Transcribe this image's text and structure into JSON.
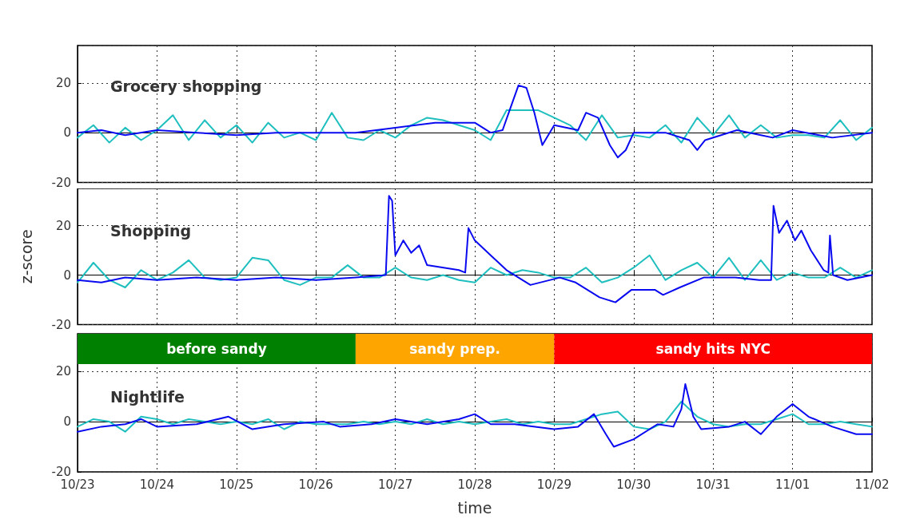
{
  "chart_data": [
    {
      "type": "line",
      "title": "Grocery shopping",
      "xlim": [
        "--10-23",
        "--11-02"
      ],
      "ylim": [
        -20,
        35
      ],
      "yticks": [
        -20,
        0,
        20
      ],
      "xticks": [
        "--10-23",
        "--10-24",
        "--10-25",
        "--10-26",
        "--10-27",
        "--10-28",
        "--10-29",
        "--10-30",
        "--10-31",
        "--11-01",
        "--11-02"
      ],
      "grid": true,
      "tick_labels": "y",
      "line_style": "solid",
      "series": [
        {
          "color": "#1fbfbf",
          "x": [
            "--10-23T00:00",
            "--10-23T04:48",
            "--10-23T09:36",
            "--10-23T14:24",
            "--10-23T19:12",
            "--10-24T00:00",
            "--10-24T04:48",
            "--10-24T09:36",
            "--10-24T14:24",
            "--10-24T19:12",
            "--10-25T00:00",
            "--10-25T04:48",
            "--10-25T09:36",
            "--10-25T14:24",
            "--10-25T19:12",
            "--10-26T00:00",
            "--10-26T04:48",
            "--10-26T09:36",
            "--10-26T14:24",
            "--10-26T19:12",
            "--10-27T00:00",
            "--10-27T04:48",
            "--10-27T09:36",
            "--10-27T14:24",
            "--10-27T19:12",
            "--10-28T00:00",
            "--10-28T04:48",
            "--10-28T09:36",
            "--10-28T14:24",
            "--10-28T19:12",
            "--10-29T00:00",
            "--10-29T04:48",
            "--10-29T09:36",
            "--10-29T14:24",
            "--10-29T19:12",
            "--10-30T00:00",
            "--10-30T04:48",
            "--10-30T09:36",
            "--10-30T14:24",
            "--10-30T19:12",
            "--10-31T00:00",
            "--10-31T04:48",
            "--10-31T09:36",
            "--10-31T14:24",
            "--10-31T19:12",
            "--11-01T00:00",
            "--11-01T04:48",
            "--11-01T09:36",
            "--11-01T14:24",
            "--11-01T19:12",
            "--11-02T00:00"
          ],
          "values": [
            -2,
            3,
            -4,
            2,
            -3,
            1,
            7,
            -3,
            5,
            -2,
            3,
            -4,
            4,
            -2,
            0,
            -3,
            8,
            -2,
            -3,
            1,
            -2,
            3,
            6,
            5,
            3,
            1,
            -3,
            9,
            9,
            9,
            6,
            3,
            -3,
            7,
            -2,
            -1,
            -2,
            3,
            -4,
            6,
            -1,
            7,
            -2,
            3,
            -2,
            -1,
            -1,
            -2,
            5,
            -3,
            2
          ]
        },
        {
          "color": "#0a0af0",
          "x": [
            "--10-23T00:00",
            "--10-23T07:12",
            "--10-23T14:24",
            "--10-24T00:00",
            "--10-24T12:00",
            "--10-25T00:00",
            "--10-25T12:00",
            "--10-26T00:00",
            "--10-26T12:00",
            "--10-27T00:00",
            "--10-27T12:00",
            "--10-28T00:00",
            "--10-28T04:48",
            "--10-28T08:24",
            "--10-28T10:48",
            "--10-28T13:12",
            "--10-28T15:36",
            "--10-28T18:00",
            "--10-28T20:24",
            "--10-29T00:00",
            "--10-29T07:12",
            "--10-29T09:36",
            "--10-29T13:12",
            "--10-29T16:48",
            "--10-29T19:12",
            "--10-29T21:36",
            "--10-30T00:00",
            "--10-30T09:36",
            "--10-30T16:48",
            "--10-30T19:12",
            "--10-30T21:36",
            "--10-31T07:12",
            "--10-31T14:24",
            "--10-31T18:00",
            "--11-01T00:00",
            "--11-01T12:00",
            "--11-02T00:00"
          ],
          "values": [
            0,
            1,
            -1,
            1,
            0,
            -1,
            0,
            0,
            0,
            2,
            4,
            4,
            0,
            1,
            10,
            19,
            18,
            8,
            -5,
            3,
            1,
            8,
            6,
            -5,
            -10,
            -7,
            0,
            0,
            -3,
            -7,
            -3,
            1,
            -1,
            -2,
            1,
            -2,
            0
          ]
        }
      ]
    },
    {
      "type": "line",
      "title": "Shopping",
      "ylabel": "z-score",
      "xlim": [
        "--10-23",
        "--11-02"
      ],
      "ylim": [
        -20,
        35
      ],
      "yticks": [
        -20,
        0,
        20
      ],
      "xticks": [
        "--10-23",
        "--10-24",
        "--10-25",
        "--10-26",
        "--10-27",
        "--10-28",
        "--10-29",
        "--10-30",
        "--10-31",
        "--11-01",
        "--11-02"
      ],
      "grid": true,
      "tick_labels": "y",
      "line_style": "solid",
      "series": [
        {
          "color": "#1fbfbf",
          "x": [
            "--10-23T00:00",
            "--10-23T04:48",
            "--10-23T09:36",
            "--10-23T14:24",
            "--10-23T19:12",
            "--10-24T00:00",
            "--10-24T04:48",
            "--10-24T09:36",
            "--10-24T14:24",
            "--10-24T19:12",
            "--10-25T00:00",
            "--10-25T04:48",
            "--10-25T09:36",
            "--10-25T14:24",
            "--10-25T19:12",
            "--10-26T00:00",
            "--10-26T04:48",
            "--10-26T09:36",
            "--10-26T14:24",
            "--10-26T19:12",
            "--10-27T00:00",
            "--10-27T04:48",
            "--10-27T09:36",
            "--10-27T14:24",
            "--10-27T19:12",
            "--10-28T00:00",
            "--10-28T04:48",
            "--10-28T09:36",
            "--10-28T14:24",
            "--10-28T19:12",
            "--10-29T00:00",
            "--10-29T04:48",
            "--10-29T09:36",
            "--10-29T14:24",
            "--10-29T19:12",
            "--10-30T00:00",
            "--10-30T04:48",
            "--10-30T09:36",
            "--10-30T14:24",
            "--10-30T19:12",
            "--10-31T00:00",
            "--10-31T04:48",
            "--10-31T09:36",
            "--10-31T14:24",
            "--10-31T19:12",
            "--11-01T00:00",
            "--11-01T04:48",
            "--11-01T09:36",
            "--11-01T14:24",
            "--11-01T19:12",
            "--11-02T00:00"
          ],
          "values": [
            -3,
            5,
            -2,
            -5,
            2,
            -2,
            1,
            6,
            -1,
            -2,
            -1,
            7,
            6,
            -2,
            -4,
            -1,
            -1,
            4,
            -1,
            -1,
            3,
            -1,
            -2,
            0,
            -2,
            -3,
            3,
            0,
            2,
            1,
            -1,
            -1,
            3,
            -3,
            -1,
            3,
            8,
            -2,
            2,
            5,
            -1,
            7,
            -2,
            6,
            -2,
            1,
            -1,
            -1,
            3,
            -1,
            2
          ]
        },
        {
          "color": "#0a0af0",
          "x": [
            "--10-23T00:00",
            "--10-23T07:12",
            "--10-23T14:24",
            "--10-24T00:00",
            "--10-24T12:00",
            "--10-25T00:00",
            "--10-25T12:00",
            "--10-26T00:00",
            "--10-26T12:00",
            "--10-26T21:07",
            "--10-26T22:05",
            "--10-26T23:02",
            "--10-27T00:00",
            "--10-27T02:24",
            "--10-27T04:48",
            "--10-27T07:12",
            "--10-27T09:36",
            "--10-27T19:12",
            "--10-27T21:07",
            "--10-27T22:05",
            "--10-28T00:00",
            "--10-28T04:48",
            "--10-28T09:36",
            "--10-28T16:48",
            "--10-29T01:41",
            "--10-29T06:29",
            "--10-29T13:41",
            "--10-29T18:29",
            "--10-29T23:17",
            "--10-30T06:29",
            "--10-30T08:53",
            "--10-30T13:55",
            "--10-30T21:07",
            "--10-31T06:43",
            "--10-31T13:55",
            "--10-31T17:31",
            "--10-31T18:14",
            "--10-31T19:55",
            "--10-31T22:19",
            "--11-01T00:43",
            "--11-01T02:38",
            "--11-01T05:31",
            "--11-01T09:22",
            "--11-01T10:48",
            "--11-01T11:17",
            "--11-01T12:14",
            "--11-01T16:34",
            "--11-02T00:00"
          ],
          "values": [
            -2,
            -3,
            -1,
            -2,
            -1,
            -2,
            -1,
            -2,
            -1,
            0,
            32,
            30,
            8,
            14,
            9,
            12,
            4,
            2,
            1,
            19,
            14,
            8,
            2,
            -4,
            -1,
            -3,
            -9,
            -11,
            -6,
            -6,
            -8,
            -5,
            -1,
            -1,
            -2,
            -2,
            28,
            17,
            22,
            14,
            18,
            10,
            2,
            1,
            16,
            0,
            -2,
            0
          ]
        }
      ]
    },
    {
      "type": "line",
      "title": "Nightlife",
      "xlabel": "time",
      "xlim": [
        "--10-23",
        "--11-02"
      ],
      "ylim": [
        -20,
        35
      ],
      "yticks": [
        -20,
        0,
        20
      ],
      "xticks": [
        {
          "value": "--10-23",
          "label": "10/23"
        },
        {
          "value": "--10-24",
          "label": "10/24"
        },
        {
          "value": "--10-25",
          "label": "10/25"
        },
        {
          "value": "--10-26",
          "label": "10/26"
        },
        {
          "value": "--10-27",
          "label": "10/27"
        },
        {
          "value": "--10-28",
          "label": "10/28"
        },
        {
          "value": "--10-29",
          "label": "10/29"
        },
        {
          "value": "--10-30",
          "label": "10/30"
        },
        {
          "value": "--10-31",
          "label": "10/31"
        },
        {
          "value": "--11-01",
          "label": "11/01"
        },
        {
          "value": "--11-02",
          "label": "11/02"
        }
      ],
      "grid": true,
      "line_style": "solid",
      "bands": [
        {
          "axis": "x",
          "from": "--10-23",
          "to": "--10-26T12:00",
          "label": "before sandy",
          "color": "#008000"
        },
        {
          "axis": "x",
          "from": "--10-26T12:00",
          "to": "--10-29",
          "label": "sandy prep.",
          "color": "#ffa500"
        },
        {
          "axis": "x",
          "from": "--10-29",
          "to": "--11-02",
          "label": "sandy hits NYC",
          "color": "#ff0000"
        }
      ],
      "series": [
        {
          "color": "#1fbfbf",
          "x": [
            "--10-23T00:00",
            "--10-23T04:48",
            "--10-23T09:36",
            "--10-23T14:24",
            "--10-23T19:12",
            "--10-24T00:00",
            "--10-24T04:48",
            "--10-24T09:36",
            "--10-24T14:24",
            "--10-24T19:12",
            "--10-25T00:00",
            "--10-25T04:48",
            "--10-25T09:36",
            "--10-25T14:24",
            "--10-25T19:12",
            "--10-26T00:00",
            "--10-26T04:48",
            "--10-26T09:36",
            "--10-26T14:24",
            "--10-26T19:12",
            "--10-27T00:00",
            "--10-27T04:48",
            "--10-27T09:36",
            "--10-27T14:24",
            "--10-27T19:12",
            "--10-28T00:00",
            "--10-28T04:48",
            "--10-28T09:36",
            "--10-28T14:24",
            "--10-28T19:12",
            "--10-29T00:00",
            "--10-29T04:48",
            "--10-29T09:36",
            "--10-29T14:24",
            "--10-29T19:12",
            "--10-30T00:00",
            "--10-30T04:48",
            "--10-30T09:36",
            "--10-30T14:24",
            "--10-30T19:12",
            "--10-31T00:00",
            "--10-31T04:48",
            "--10-31T09:36",
            "--10-31T14:24",
            "--10-31T19:12",
            "--11-01T00:00",
            "--11-01T04:48",
            "--11-01T09:36",
            "--11-01T14:24",
            "--11-01T19:12",
            "--11-02T00:00"
          ],
          "values": [
            -2,
            1,
            0,
            -4,
            2,
            1,
            -1,
            1,
            0,
            -1,
            0,
            -1,
            1,
            -3,
            0,
            -1,
            -1,
            -1,
            0,
            -1,
            0,
            -1,
            1,
            -1,
            0,
            -1,
            0,
            1,
            -1,
            0,
            -1,
            -1,
            1,
            3,
            4,
            -2,
            -3,
            0,
            8,
            2,
            -1,
            -2,
            -1,
            -1,
            1,
            3,
            -1,
            -1,
            0,
            -1,
            -2
          ]
        },
        {
          "color": "#0a0af0",
          "x": [
            "--10-23T00:00",
            "--10-23T07:12",
            "--10-23T14:24",
            "--10-23T19:12",
            "--10-24T00:00",
            "--10-24T12:00",
            "--10-24T21:36",
            "--10-25T04:48",
            "--10-25T14:24",
            "--10-26T02:24",
            "--10-26T07:12",
            "--10-26T16:48",
            "--10-27T00:00",
            "--10-27T09:36",
            "--10-27T19:12",
            "--10-28T00:00",
            "--10-28T04:48",
            "--10-28T12:00",
            "--10-29T00:00",
            "--10-29T07:12",
            "--10-29T12:00",
            "--10-29T15:36",
            "--10-29T18:00",
            "--10-30T00:00",
            "--10-30T07:12",
            "--10-30T12:00",
            "--10-30T14:24",
            "--10-30T15:36",
            "--10-30T18:00",
            "--10-30T20:24",
            "--10-31T04:48",
            "--10-31T09:36",
            "--10-31T14:24",
            "--10-31T19:12",
            "--11-01T00:00",
            "--11-01T04:48",
            "--11-01T12:00",
            "--11-01T19:12",
            "--11-02T00:00"
          ],
          "values": [
            -4,
            -2,
            -1,
            1,
            -2,
            -1,
            2,
            -3,
            -1,
            0,
            -2,
            -1,
            1,
            -1,
            1,
            3,
            -1,
            -1,
            -3,
            -2,
            3,
            -5,
            -10,
            -7,
            -1,
            -2,
            5,
            15,
            2,
            -3,
            -2,
            0,
            -5,
            2,
            7,
            2,
            -2,
            -5,
            -5
          ]
        }
      ]
    }
  ]
}
